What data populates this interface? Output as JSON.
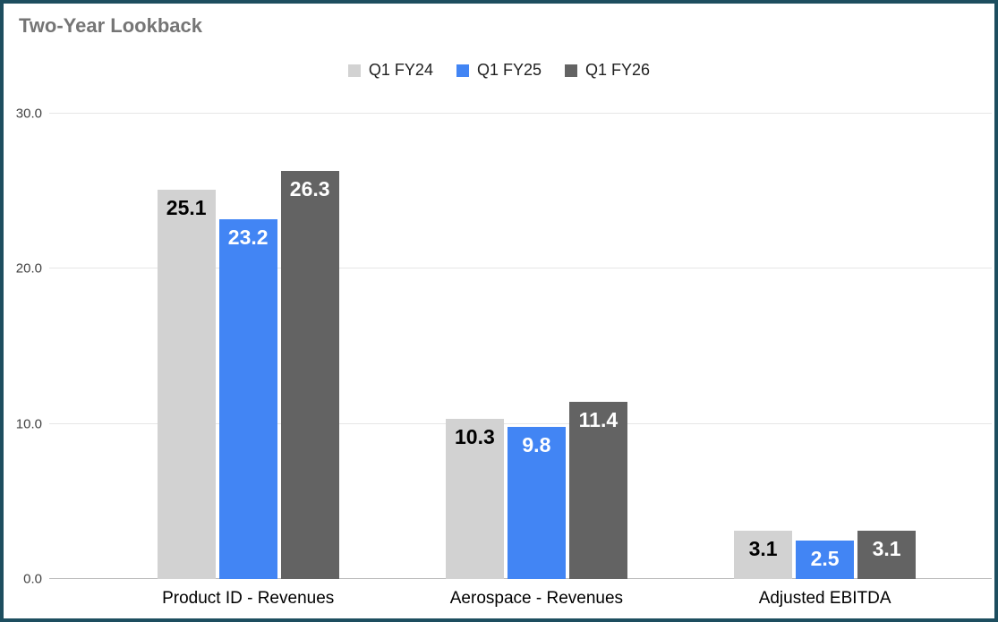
{
  "title": "Two-Year Lookback",
  "chart_data": {
    "type": "bar",
    "title": "Two-Year Lookback",
    "categories": [
      "Product ID - Revenues",
      "Aerospace - Revenues",
      "Adjusted EBITDA"
    ],
    "series": [
      {
        "name": "Q1 FY24",
        "color": "#d2d2d2",
        "label_color": "#000000",
        "values": [
          25.1,
          10.3,
          3.1
        ]
      },
      {
        "name": "Q1 FY25",
        "color": "#4285f4",
        "label_color": "#ffffff",
        "values": [
          23.2,
          9.8,
          2.5
        ]
      },
      {
        "name": "Q1 FY26",
        "color": "#636363",
        "label_color": "#ffffff",
        "values": [
          26.3,
          11.4,
          3.1
        ]
      }
    ],
    "ylim": [
      0,
      30
    ],
    "yticks": [
      0,
      10,
      20,
      30
    ],
    "ytick_labels": [
      "0.0",
      "10.0",
      "20.0",
      "30.0"
    ],
    "grid": true,
    "legend_position": "top"
  },
  "colors": {
    "frame_border": "#1d4e5f",
    "title_text": "#757575",
    "gridline": "#e6e6e6",
    "axis_line": "#b7b7b7",
    "ytick_text": "#424242",
    "category_text": "#000000",
    "legend_text": "#212121",
    "background": "#ffffff"
  }
}
